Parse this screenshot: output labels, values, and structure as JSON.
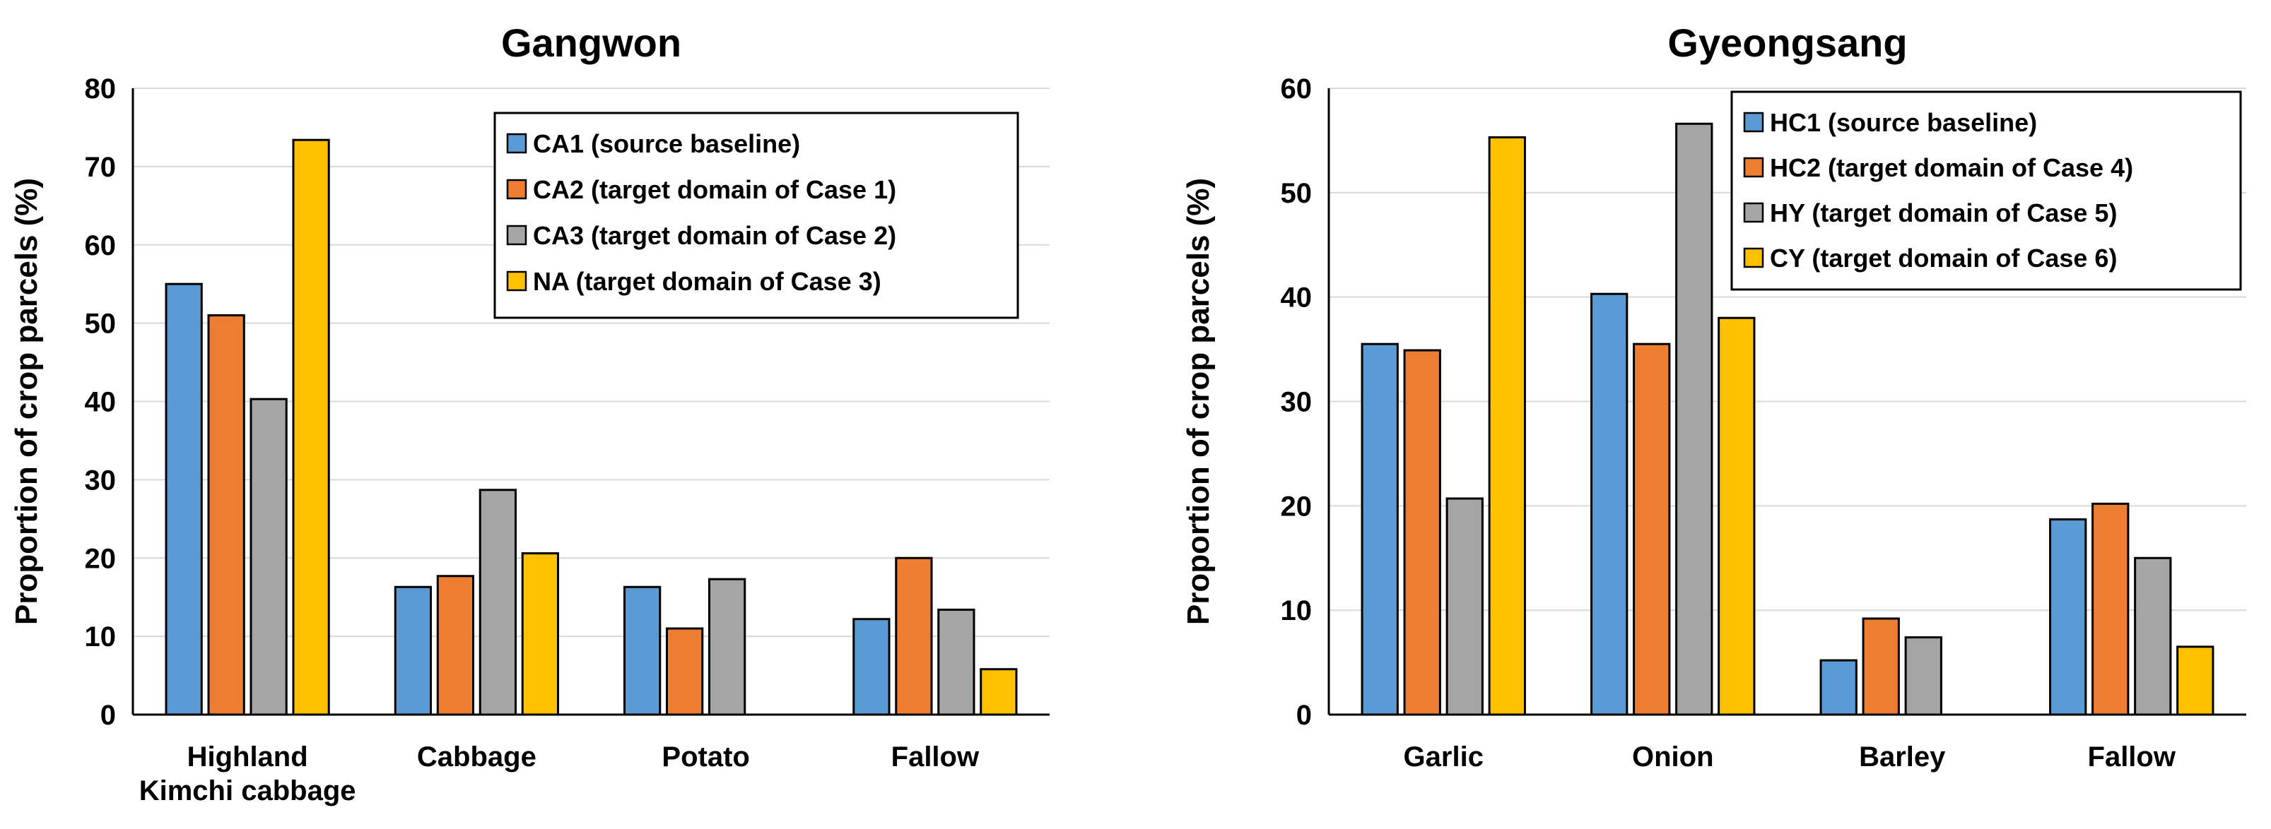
{
  "chart_data": [
    {
      "type": "bar",
      "title": "Gangwon",
      "xlabel": "",
      "ylabel": "Proportion of crop parcels (%)",
      "ylim": [
        0,
        80
      ],
      "yticks": [
        0,
        10,
        20,
        30,
        40,
        50,
        60,
        70,
        80
      ],
      "categories": [
        [
          "Highland",
          "Kimchi cabbage"
        ],
        [
          "Cabbage"
        ],
        [
          "Potato"
        ],
        [
          "Fallow"
        ]
      ],
      "series": [
        {
          "name": "CA1 (source baseline)",
          "color": "#5b9bd5",
          "values": [
            55.0,
            16.3,
            16.3,
            12.2
          ]
        },
        {
          "name": "CA2 (target domain of Case 1)",
          "color": "#ed7d31",
          "values": [
            51.0,
            17.7,
            11.0,
            20.0
          ]
        },
        {
          "name": "CA3 (target domain of Case 2)",
          "color": "#a5a5a5",
          "values": [
            40.3,
            28.7,
            17.3,
            13.4
          ]
        },
        {
          "name": "NA (target domain of Case 3)",
          "color": "#ffc000",
          "values": [
            73.4,
            20.6,
            null,
            5.8
          ]
        }
      ],
      "legend": "top-right",
      "grid": true
    },
    {
      "type": "bar",
      "title": "Gyeongsang",
      "xlabel": "",
      "ylabel": "Proportion of crop parcels (%)",
      "ylim": [
        0,
        60
      ],
      "yticks": [
        0,
        10,
        20,
        30,
        40,
        50,
        60
      ],
      "categories": [
        [
          "Garlic"
        ],
        [
          "Onion"
        ],
        [
          "Barley"
        ],
        [
          "Fallow"
        ]
      ],
      "series": [
        {
          "name": "HC1 (source baseline)",
          "color": "#5b9bd5",
          "values": [
            35.5,
            40.3,
            5.2,
            18.7
          ]
        },
        {
          "name": "HC2 (target domain of Case 4)",
          "color": "#ed7d31",
          "values": [
            34.9,
            35.5,
            9.2,
            20.2
          ]
        },
        {
          "name": "HY (target domain of Case 5)",
          "color": "#a5a5a5",
          "values": [
            20.7,
            56.6,
            7.4,
            15.0
          ]
        },
        {
          "name": "CY (target domain of Case 6)",
          "color": "#ffc000",
          "values": [
            55.3,
            38.0,
            null,
            6.5
          ]
        }
      ],
      "legend": "top-right",
      "grid": true
    }
  ]
}
